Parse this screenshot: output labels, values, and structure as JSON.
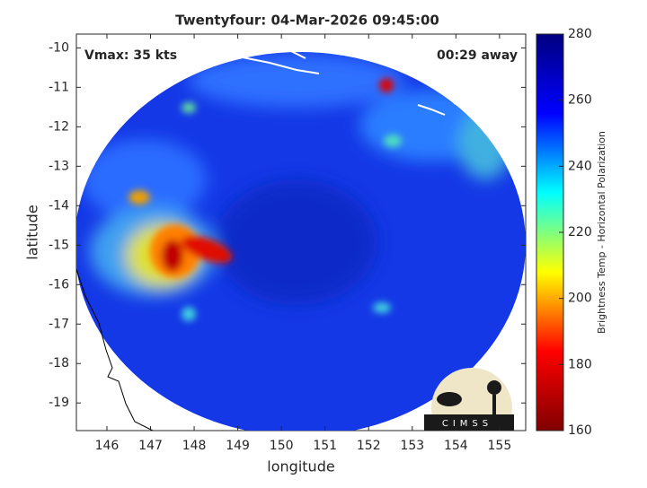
{
  "chart_data": {
    "type": "image-map",
    "title": "Twentyfour: 04-Mar-2026 09:45:00",
    "annotations": [
      "Vmax: 35 kts",
      "00:29 away"
    ],
    "x_label": "longitude",
    "y_label": "latitude",
    "xlim": [
      145.3,
      155.6
    ],
    "xticks": [
      146,
      147,
      148,
      149,
      150,
      151,
      152,
      153,
      154,
      155
    ],
    "ylim": [
      -19.7,
      -9.65
    ],
    "yticks": [
      -10,
      -11,
      -12,
      -13,
      -14,
      -15,
      -16,
      -17,
      -18,
      -19
    ],
    "colorbar": {
      "label": "Brightness Temp - Horizontal Polarization",
      "lim": [
        160,
        280
      ],
      "ticks": [
        160,
        180,
        200,
        220,
        240,
        260,
        280
      ],
      "colors": [
        "#800000",
        "#ff0000",
        "#ffff00",
        "#00ffff",
        "#0000ff",
        "#000080"
      ]
    },
    "logo_text": "CIMSS"
  }
}
